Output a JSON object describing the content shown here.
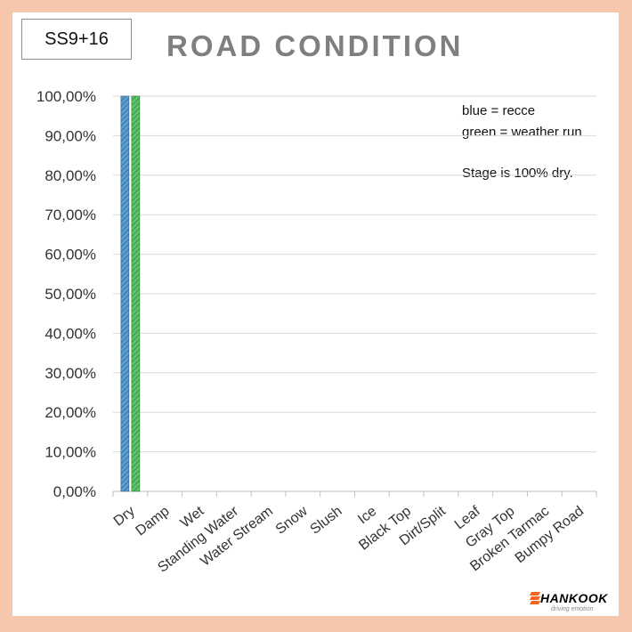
{
  "stage_label": "SS9+16",
  "logo": {
    "brand": "HANKOOK",
    "tagline": "driving emotion"
  },
  "colors": {
    "recce": "#5a9fd0",
    "weather": "#5cc46a",
    "grid": "#d9d9d9",
    "axis": "#bfbfbf"
  },
  "chart_data": {
    "type": "bar",
    "title": "ROAD CONDITION",
    "xlabel": "",
    "ylabel": "",
    "ylim": [
      0,
      100
    ],
    "y_ticks": [
      0,
      10,
      20,
      30,
      40,
      50,
      60,
      70,
      80,
      90,
      100
    ],
    "y_tick_labels": [
      "0,00%",
      "10,00%",
      "20,00%",
      "30,00%",
      "40,00%",
      "50,00%",
      "60,00%",
      "70,00%",
      "80,00%",
      "90,00%",
      "100,00%"
    ],
    "grid": true,
    "categories": [
      "Dry",
      "Damp",
      "Wet",
      "Standing Water",
      "Water Stream",
      "Snow",
      "Slush",
      "Ice",
      "Black Top",
      "Dirt/Split",
      "Leaf",
      "Gray Top",
      "Broken Tarmac",
      "Bumpy Road"
    ],
    "series": [
      {
        "values": [
          100,
          0,
          0,
          0,
          0,
          0,
          0,
          0,
          0,
          0,
          0,
          0,
          0,
          0
        ]
      },
      {
        "values": [
          100,
          0,
          0,
          0,
          0,
          0,
          0,
          0,
          0,
          0,
          0,
          0,
          0,
          0
        ]
      }
    ],
    "annotations": [
      "blue = recce",
      "green = weather run",
      "Stage is 100% dry."
    ]
  }
}
